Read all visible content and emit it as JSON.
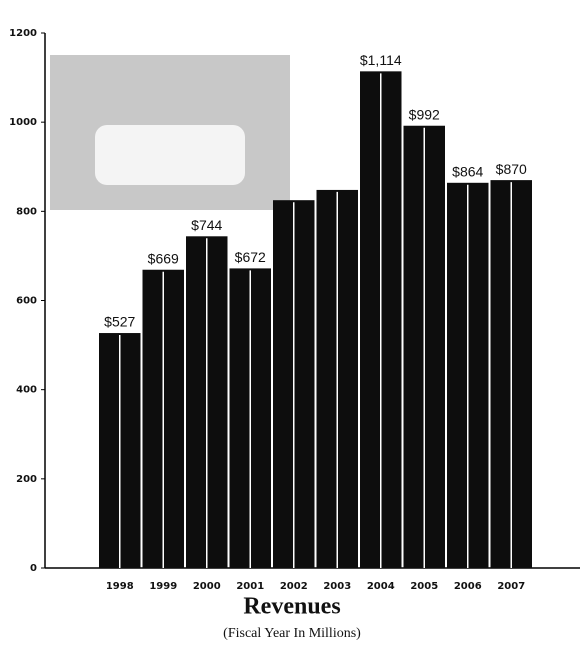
{
  "chart_data": {
    "type": "bar",
    "title": "Revenues",
    "subtitle": "(Fiscal Year In Millions)",
    "categories": [
      "1998",
      "1999",
      "2000",
      "2001",
      "2002",
      "2003",
      "2004",
      "2005",
      "2006",
      "2007"
    ],
    "values": [
      527,
      669,
      744,
      672,
      825,
      848,
      1114,
      992,
      864,
      870
    ],
    "value_labels": [
      "$527",
      "$669",
      "$744",
      "$672",
      null,
      null,
      "$1,114",
      "$992",
      "$864",
      "$870"
    ],
    "color": "#0d0d0d",
    "ylim": [
      0,
      1200
    ],
    "yticks": [
      0,
      200,
      400,
      600,
      800,
      1000,
      1200
    ]
  }
}
